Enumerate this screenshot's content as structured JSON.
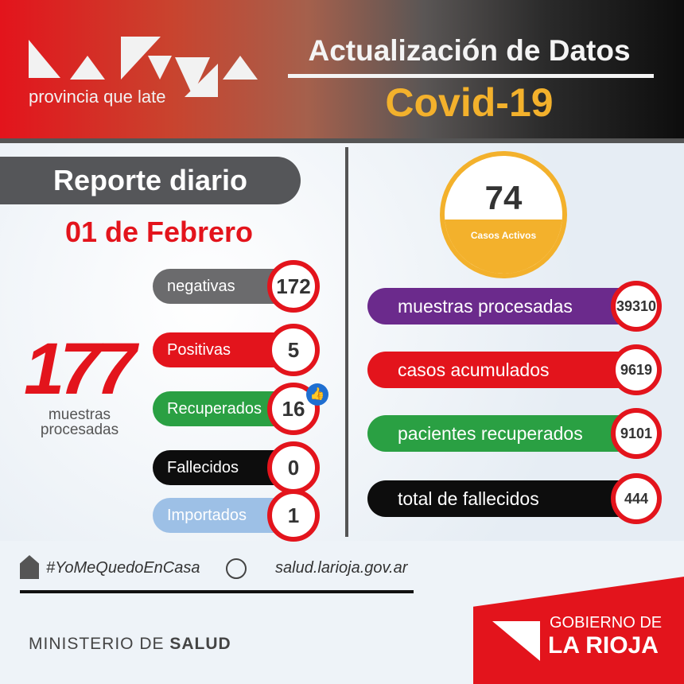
{
  "header": {
    "logo_text": "La Rioja",
    "tagline": "provincia que late",
    "title": "Actualización de Datos",
    "subtitle": "Covid-19"
  },
  "left": {
    "report_label": "Reporte diario",
    "date": "01 de Febrero",
    "total": {
      "value": "177",
      "label": "muestras procesadas"
    },
    "rows": [
      {
        "label": "negativas",
        "value": "172",
        "color": "#6b6b6d"
      },
      {
        "label": "Positivas",
        "value": "5",
        "color": "#e3141c"
      },
      {
        "label": "Recuperados",
        "value": "16",
        "color": "#2aa043"
      },
      {
        "label": "Fallecidos",
        "value": "0",
        "color": "#0d0d0d"
      },
      {
        "label": "Importados",
        "value": "1",
        "color": "#9dc0e6"
      }
    ],
    "like_icon": "thumbs-up-icon"
  },
  "right": {
    "active": {
      "value": "74",
      "label": "Casos Activos"
    },
    "rows": [
      {
        "label": "muestras procesadas",
        "value": "39310",
        "color": "#6b2a8c"
      },
      {
        "label": "casos acumulados",
        "value": "9619",
        "color": "#e3141c"
      },
      {
        "label": "pacientes recuperados",
        "value": "9101",
        "color": "#2aa043"
      },
      {
        "label": "total de fallecidos",
        "value": "444",
        "color": "#0d0d0d"
      }
    ]
  },
  "footer": {
    "hashtag": "#YoMeQuedoEnCasa",
    "website": "salud.larioja.gov.ar",
    "ministry_light": "MINISTERIO DE ",
    "ministry_bold": "SALUD",
    "gov_line1": "GOBIERNO DE",
    "gov_line2": "LA RIOJA"
  }
}
